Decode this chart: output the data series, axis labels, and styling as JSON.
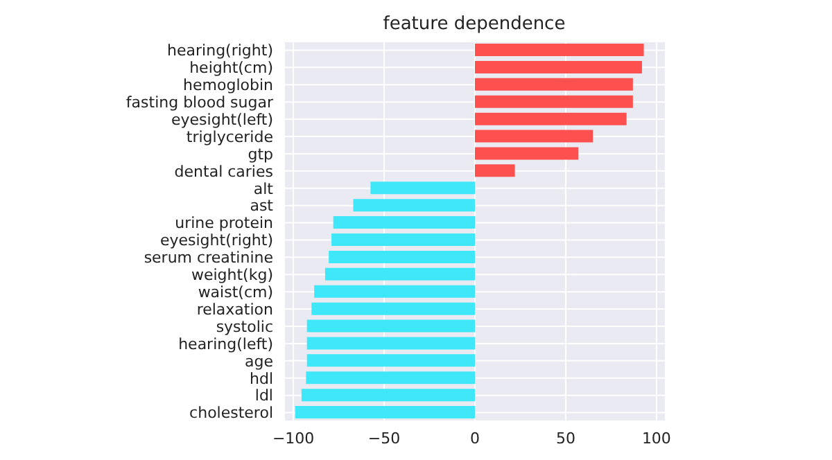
{
  "chart_data": {
    "type": "bar",
    "orientation": "horizontal",
    "title": "feature dependence",
    "categories": [
      "hearing(right)",
      "height(cm)",
      "hemoglobin",
      "fasting blood sugar",
      "eyesight(left)",
      "triglyceride",
      "gtp",
      "dental caries",
      "alt",
      "ast",
      "urine protein",
      "eyesight(right)",
      "serum creatinine",
      "weight(kg)",
      "waist(cm)",
      "relaxation",
      "systolic",
      "hearing(left)",
      "age",
      "hdl",
      "ldl",
      "cholesterol"
    ],
    "values": [
      93,
      92,
      87,
      87,
      83.5,
      65,
      57,
      22,
      -57.5,
      -67,
      -78,
      -79,
      -80.5,
      -82.5,
      -88.5,
      -90,
      -92.5,
      -92.5,
      -92.5,
      -93,
      -95.5,
      -99
    ],
    "colors": [
      "#ff5050",
      "#ff5050",
      "#ff5050",
      "#ff5050",
      "#ff5050",
      "#ff5050",
      "#ff5050",
      "#ff5050",
      "#3ee8f8",
      "#3ee8f8",
      "#3ee8f8",
      "#3ee8f8",
      "#3ee8f8",
      "#3ee8f8",
      "#3ee8f8",
      "#3ee8f8",
      "#3ee8f8",
      "#3ee8f8",
      "#3ee8f8",
      "#3ee8f8",
      "#3ee8f8",
      "#3ee8f8"
    ],
    "xlim": [
      -105,
      105
    ],
    "xticks": [
      -100,
      -50,
      0,
      50,
      100
    ],
    "grid": true
  }
}
